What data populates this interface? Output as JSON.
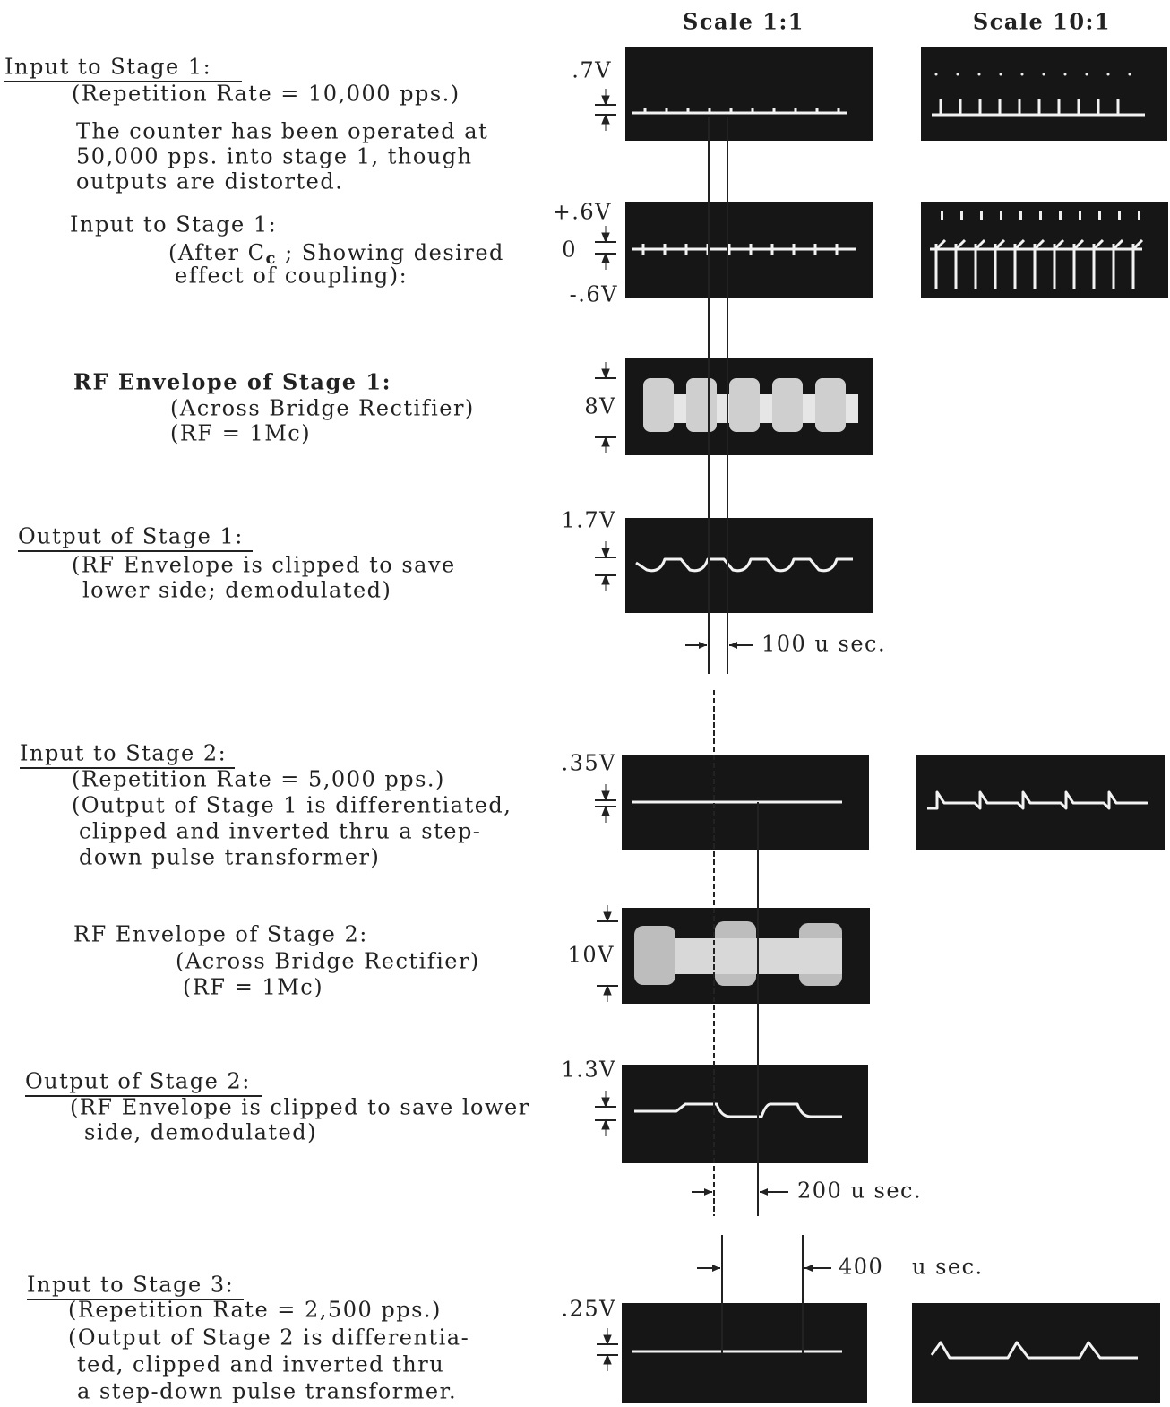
{
  "column_headers": [
    "Scale 1:1",
    "Scale 10:1"
  ],
  "captions": [
    {
      "lines": [
        "Input to Stage 1:",
        "(Repetition Rate = 10,000 pps.)"
      ]
    },
    {
      "lines": [
        "The counter has been operated at",
        "50,000 pps. into stage 1, though",
        "outputs are distorted."
      ]
    },
    {
      "lines": [
        "Input to Stage 1:",
        [
          "(After C",
          "c",
          " ; Showing desired"
        ],
        "effect of coupling):"
      ]
    },
    {
      "lines": [
        "RF Envelope of Stage 1:",
        "(Across Bridge Rectifier)",
        "(RF = 1Mc)"
      ]
    },
    {
      "lines": [
        "Output of Stage 1:",
        "(RF Envelope is clipped to save",
        "lower side; demodulated)"
      ]
    },
    {
      "lines": [
        "Input to Stage 2:",
        "(Repetition Rate = 5,000 pps.)",
        "(Output of Stage 1 is differentiated,",
        "clipped and inverted thru a step-",
        "down pulse transformer)"
      ]
    },
    {
      "lines": [
        "RF Envelope of Stage 2:",
        "(Across Bridge Rectifier)",
        "(RF = 1Mc)"
      ]
    },
    {
      "lines": [
        "Output of Stage 2:",
        "(RF Envelope is clipped to save lower",
        "side, demodulated)"
      ]
    },
    {
      "lines": [
        "Input to Stage 3:",
        "(Repetition Rate = 2,500 pps.)",
        "(Output of Stage 2 is differentia-",
        "ted, clipped and inverted thru",
        "a step-down pulse transformer."
      ]
    }
  ],
  "scope_labels": [
    ".7V",
    "+.6V",
    "0",
    "-.6V",
    "8V",
    "1.7V",
    ".35V",
    "10V",
    "1.3V",
    ".25V"
  ],
  "timing_labels": [
    "100 u sec.",
    "200 u sec.",
    "400",
    "u sec."
  ]
}
